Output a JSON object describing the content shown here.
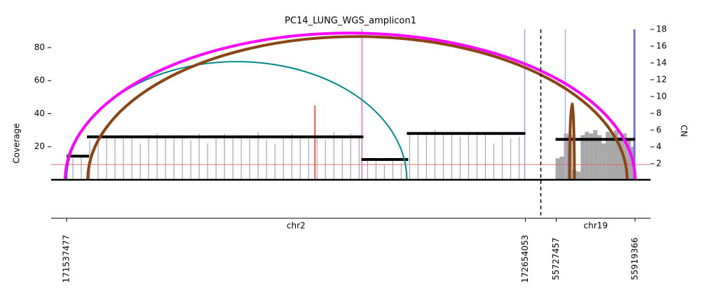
{
  "chart_data": {
    "type": "amplicon",
    "title": "PC14_LUNG_WGS_amplicon1",
    "ylabel": "Coverage",
    "y2label": "CN",
    "ylim": [
      0,
      91
    ],
    "yticks": [
      20,
      40,
      60,
      80
    ],
    "y2lim": [
      0,
      18
    ],
    "y2ticks": [
      2,
      4,
      6,
      8,
      10,
      12,
      14,
      16,
      18
    ],
    "cn_threshold": 1.9,
    "regions": [
      {
        "name": "chr2",
        "xlim": [
          171537477,
          172654053
        ],
        "xticks": [
          171537477,
          172654053
        ]
      },
      {
        "name": "chr19",
        "xlim": [
          55727457,
          55919366
        ],
        "xticks": [
          55727457,
          55919366
        ]
      }
    ],
    "coverage": [
      {
        "region": "chr2",
        "color": "#a8a8a8",
        "x": [
          171552843,
          171573331,
          171593819,
          171614307,
          171634795,
          171655283,
          171675771,
          171696259,
          171716747,
          171737235,
          171757723,
          171778211,
          171798699,
          171819187,
          171839675,
          171860163,
          171880651,
          171901139,
          171921627,
          171942115,
          171962603,
          171983091,
          172003579,
          172024067,
          172044555,
          172065043,
          172085531,
          172106019,
          172126507,
          172146995,
          172167483,
          172187971,
          172208459,
          172228947,
          172249435,
          172269923,
          172290411,
          172310899,
          172331387,
          172351875,
          172372363,
          172392851,
          172413339,
          172433827,
          172454315,
          172474803,
          172495291,
          172515779,
          172536267,
          172556755,
          172577243,
          172597731,
          172618219,
          172638707
        ],
        "values": [
          13,
          14,
          24,
          26,
          27,
          25,
          27,
          26,
          22,
          27,
          28,
          25,
          26,
          27,
          24,
          28,
          22,
          27,
          28,
          25,
          27,
          26,
          29,
          24,
          22,
          27,
          28,
          26,
          25,
          27,
          24,
          29,
          27,
          28,
          26,
          12,
          11,
          9,
          12,
          10,
          28,
          29,
          27,
          30,
          28,
          29,
          26,
          28,
          27,
          29,
          22,
          27,
          25,
          26
        ]
      },
      {
        "region": "chr19",
        "color": "#a8a8a8",
        "x": [
          55730854,
          55741042,
          55751230,
          55761418,
          55771606,
          55781794,
          55791982,
          55802170,
          55812358,
          55822546,
          55832734,
          55842922,
          55853110,
          55863298,
          55873486,
          55883674,
          55893862,
          55904050,
          55914238
        ],
        "values": [
          13,
          14,
          28,
          27,
          6,
          5,
          27,
          29,
          28,
          30,
          27,
          22,
          29,
          28,
          30,
          26,
          28,
          25,
          20
        ]
      }
    ],
    "segments": [
      {
        "region": "chr2",
        "start": 171537477,
        "end": 171592110,
        "cn": 2.9
      },
      {
        "region": "chr2",
        "start": 171587000,
        "end": 172259700,
        "cn": 5.2
      },
      {
        "region": "chr2",
        "start": 172254600,
        "end": 172368900,
        "cn": 2.5
      },
      {
        "region": "chr2",
        "start": 172365500,
        "end": 172654053,
        "cn": 5.6
      },
      {
        "region": "chr19",
        "start": 55725760,
        "end": 55919366,
        "cn": 4.9
      }
    ],
    "breakpoint_lines": [
      {
        "region": "chr2",
        "position": 172141860,
        "color": "#e8302a",
        "height": 45
      },
      {
        "region": "chr2",
        "position": 172256250,
        "color": "#e070e0"
      },
      {
        "region": "chr2",
        "position": 172652345,
        "color": "#a0a0f0"
      },
      {
        "region": "chr19",
        "position": 55749532,
        "color": "#b0b0f0"
      },
      {
        "region": "chr19",
        "position": 55917668,
        "color": "#7070e8"
      }
    ],
    "arcs": [
      {
        "region1": "chr2",
        "pos1": 171537477,
        "region2": "chr2",
        "pos2": 172365500,
        "color": "#008b8b",
        "height": 71.5
      },
      {
        "region1": "chr2",
        "pos1": 171534000,
        "region2": "chr19",
        "pos2": 55919366,
        "color": "#ff00ff",
        "height": 88.8
      },
      {
        "region1": "chr2",
        "pos1": 171589000,
        "region2": "chr19",
        "pos2": 55900000,
        "color": "#8b4513",
        "height": 86.7
      },
      {
        "region1": "chr19",
        "pos1": 55759720,
        "region2": "chr19",
        "pos2": 55771600,
        "color": "#8b4513",
        "height": 46
      }
    ]
  }
}
